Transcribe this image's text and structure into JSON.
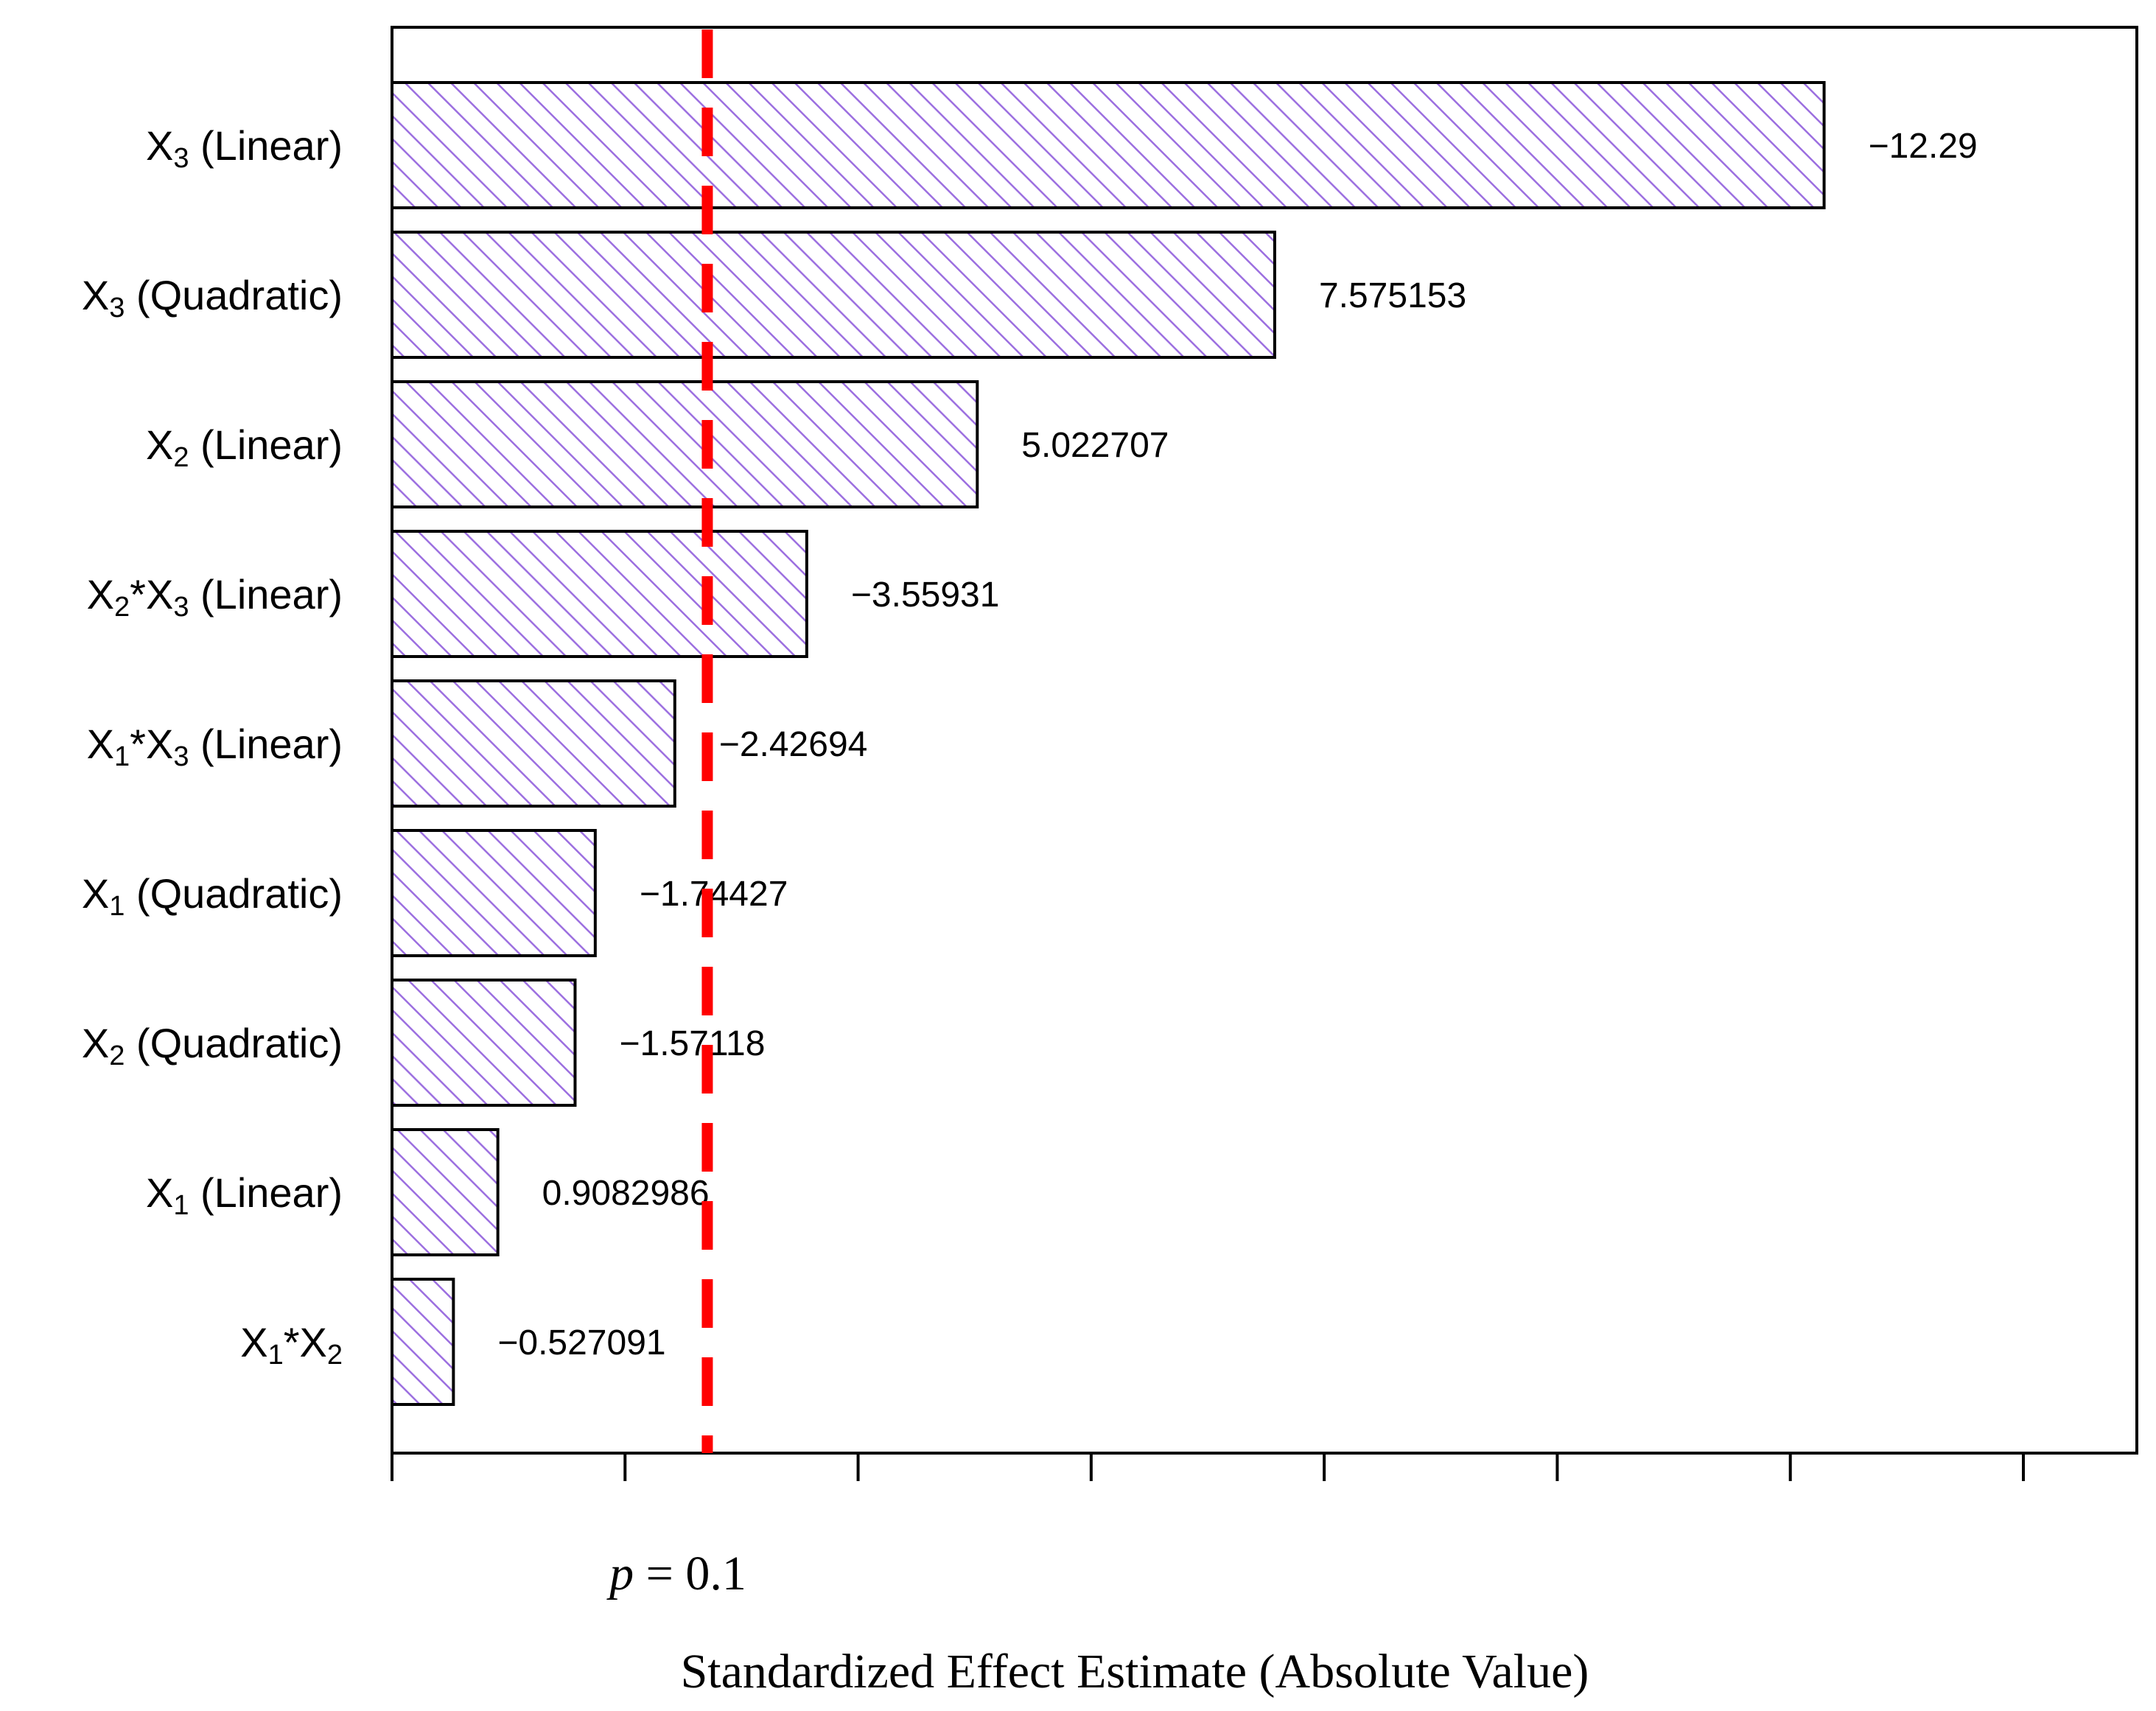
{
  "chart_data": {
    "type": "bar",
    "orientation": "horizontal",
    "categories": [
      {
        "base": "X",
        "sub": "3",
        "rest": " (Linear)"
      },
      {
        "base": "X",
        "sub": "3",
        "rest": " (Quadratic)"
      },
      {
        "base": "X",
        "sub": "2",
        "rest": " (Linear)"
      },
      {
        "parts": [
          [
            "X",
            ""
          ],
          [
            "2",
            "sub"
          ],
          [
            "*X",
            ""
          ],
          [
            "3",
            "sub"
          ],
          [
            " (Linear)",
            ""
          ]
        ]
      },
      {
        "parts": [
          [
            "X",
            ""
          ],
          [
            "1",
            "sub"
          ],
          [
            "*X",
            ""
          ],
          [
            "3",
            "sub"
          ],
          [
            " (Linear)",
            ""
          ]
        ]
      },
      {
        "base": "X",
        "sub": "1",
        "rest": " (Quadratic)"
      },
      {
        "base": "X",
        "sub": "2",
        "rest": " (Quadratic)"
      },
      {
        "base": "X",
        "sub": "1",
        "rest": " (Linear)"
      },
      {
        "parts": [
          [
            "X",
            ""
          ],
          [
            "1",
            "sub"
          ],
          [
            "*X",
            ""
          ],
          [
            "2",
            "sub"
          ]
        ]
      }
    ],
    "values": [
      12.29,
      7.575153,
      5.022707,
      3.55931,
      2.42694,
      1.74427,
      1.57118,
      0.9082986,
      0.527091
    ],
    "value_labels": [
      "−12.29",
      "7.575153",
      "5.022707",
      "−3.55931",
      "−2.42694",
      "−1.74427",
      "−1.57118",
      "0.9082986",
      "−0.527091"
    ],
    "xlim": [
      0,
      15
    ],
    "x_ticks": [
      0,
      2,
      4,
      6,
      8,
      10,
      12,
      14
    ],
    "reference_line": {
      "value": 2.706,
      "label_italic": "p",
      "label_rest": " = 0.1",
      "color": "#ff0000"
    },
    "xlabel": "Standardized Effect Estimate (Absolute Value)",
    "bar_fill": "#ffffff",
    "hatch_color": "#9c6fe0",
    "grid": false
  }
}
